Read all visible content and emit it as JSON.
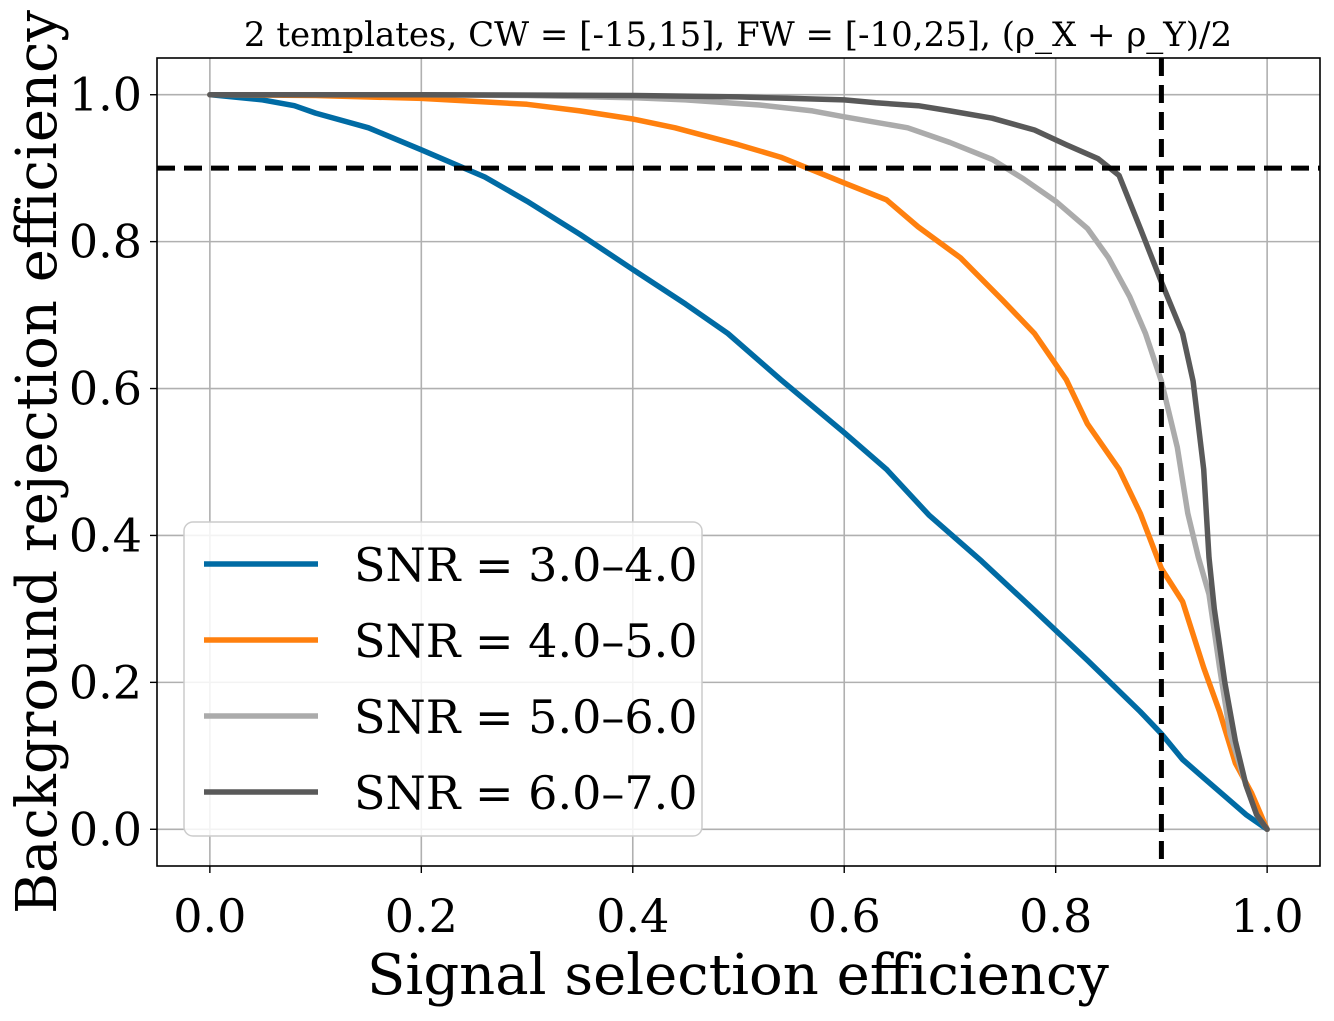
{
  "chart_data": {
    "type": "line",
    "title": "2 templates, CW = [-15,15], FW = [-10,25], (ρ_X + ρ_Y)/2",
    "xlabel": "Signal selection efficiency",
    "ylabel": "Background rejection efficiency",
    "xlim": [
      -0.05,
      1.05
    ],
    "ylim": [
      -0.05,
      1.05
    ],
    "xticks": [
      0.0,
      0.2,
      0.4,
      0.6,
      0.8,
      1.0
    ],
    "xtick_labels": [
      "0.0",
      "0.2",
      "0.4",
      "0.6",
      "0.8",
      "1.0"
    ],
    "yticks": [
      0.0,
      0.2,
      0.4,
      0.6,
      0.8,
      1.0
    ],
    "ytick_labels": [
      "0.0",
      "0.2",
      "0.4",
      "0.6",
      "0.8",
      "1.0"
    ],
    "grid": true,
    "legend_position": "bottom-left",
    "reference_lines": [
      {
        "orientation": "horizontal",
        "value": 0.9,
        "style": "dashed",
        "color": "#000000"
      },
      {
        "orientation": "vertical",
        "value": 0.9,
        "style": "dashed",
        "color": "#000000"
      }
    ],
    "series": [
      {
        "name": "SNR = 3.0–4.0",
        "color": "#006BA4",
        "x": [
          0.0,
          0.05,
          0.08,
          0.1,
          0.15,
          0.2,
          0.26,
          0.3,
          0.35,
          0.4,
          0.45,
          0.49,
          0.54,
          0.6,
          0.64,
          0.68,
          0.73,
          0.78,
          0.83,
          0.88,
          0.9,
          0.92,
          0.94,
          0.96,
          0.98,
          1.0
        ],
        "y": [
          1.0,
          0.993,
          0.985,
          0.975,
          0.955,
          0.925,
          0.888,
          0.855,
          0.81,
          0.762,
          0.715,
          0.675,
          0.612,
          0.54,
          0.49,
          0.428,
          0.365,
          0.298,
          0.23,
          0.16,
          0.13,
          0.095,
          0.07,
          0.045,
          0.02,
          0.0
        ]
      },
      {
        "name": "SNR = 4.0–5.0",
        "color": "#FF800E",
        "x": [
          0.0,
          0.1,
          0.2,
          0.3,
          0.35,
          0.4,
          0.44,
          0.5,
          0.54,
          0.6,
          0.64,
          0.67,
          0.71,
          0.75,
          0.78,
          0.81,
          0.83,
          0.86,
          0.88,
          0.9,
          0.92,
          0.94,
          0.955,
          0.97,
          0.985,
          1.0
        ],
        "y": [
          1.0,
          0.999,
          0.995,
          0.987,
          0.978,
          0.967,
          0.955,
          0.932,
          0.915,
          0.88,
          0.857,
          0.82,
          0.778,
          0.72,
          0.675,
          0.612,
          0.552,
          0.49,
          0.43,
          0.355,
          0.31,
          0.22,
          0.16,
          0.09,
          0.05,
          0.0
        ]
      },
      {
        "name": "SNR = 5.0–6.0",
        "color": "#ABABAB",
        "x": [
          0.0,
          0.1,
          0.2,
          0.3,
          0.4,
          0.45,
          0.52,
          0.57,
          0.6,
          0.66,
          0.7,
          0.74,
          0.77,
          0.8,
          0.83,
          0.85,
          0.87,
          0.885,
          0.9,
          0.915,
          0.925,
          0.935,
          0.945,
          0.955,
          0.965,
          0.98,
          0.99,
          1.0
        ],
        "y": [
          1.0,
          1.0,
          1.0,
          0.999,
          0.996,
          0.993,
          0.986,
          0.978,
          0.97,
          0.955,
          0.935,
          0.912,
          0.885,
          0.855,
          0.818,
          0.778,
          0.725,
          0.675,
          0.61,
          0.52,
          0.43,
          0.37,
          0.32,
          0.22,
          0.13,
          0.06,
          0.02,
          0.0
        ]
      },
      {
        "name": "SNR = 6.0–7.0",
        "color": "#595959",
        "x": [
          0.0,
          0.2,
          0.4,
          0.5,
          0.55,
          0.6,
          0.63,
          0.67,
          0.7,
          0.74,
          0.78,
          0.81,
          0.84,
          0.86,
          0.88,
          0.9,
          0.92,
          0.93,
          0.94,
          0.945,
          0.95,
          0.955,
          0.96,
          0.97,
          0.98,
          0.99,
          1.0
        ],
        "y": [
          1.0,
          1.0,
          0.999,
          0.997,
          0.995,
          0.993,
          0.989,
          0.985,
          0.978,
          0.968,
          0.952,
          0.932,
          0.913,
          0.89,
          0.818,
          0.745,
          0.675,
          0.61,
          0.49,
          0.37,
          0.3,
          0.25,
          0.2,
          0.12,
          0.06,
          0.02,
          0.0
        ]
      }
    ]
  }
}
